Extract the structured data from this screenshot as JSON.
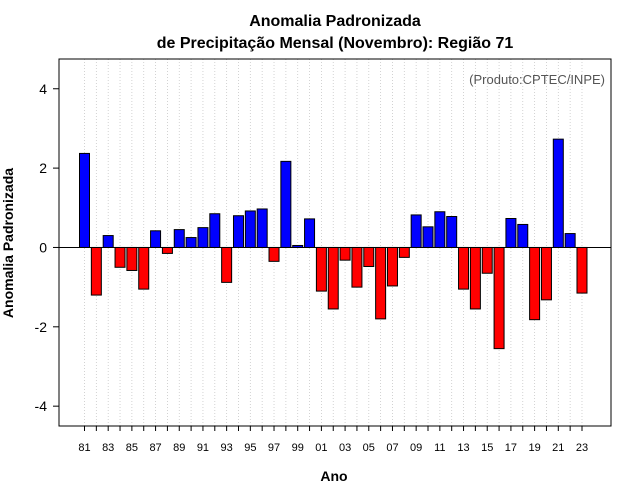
{
  "chart_data": {
    "type": "bar",
    "title_line1": "Anomalia Padronizada",
    "title_line2": "de Precipitação Mensal (Novembro): Região 71",
    "xlabel": "Ano",
    "ylabel": "Anomalia Padronizada",
    "annotation": "(Produto:CPTEC/INPE)",
    "ylim": [
      -4.5,
      4.75
    ],
    "yticks": [
      -4,
      -2,
      0,
      2,
      4
    ],
    "grid": "vertical dotted",
    "categories": [
      "81",
      "82",
      "83",
      "84",
      "85",
      "86",
      "87",
      "88",
      "89",
      "90",
      "91",
      "92",
      "93",
      "94",
      "95",
      "96",
      "97",
      "98",
      "99",
      "00",
      "01",
      "02",
      "03",
      "04",
      "05",
      "06",
      "07",
      "08",
      "09",
      "10",
      "11",
      "12",
      "13",
      "14",
      "15",
      "16",
      "17",
      "18",
      "19",
      "20",
      "21",
      "22",
      "23"
    ],
    "xtick_labels": [
      "81",
      "83",
      "85",
      "87",
      "89",
      "91",
      "93",
      "95",
      "97",
      "99",
      "01",
      "03",
      "05",
      "07",
      "09",
      "11",
      "13",
      "15",
      "17",
      "19",
      "21",
      "23"
    ],
    "values": [
      2.37,
      -1.2,
      0.3,
      -0.5,
      -0.58,
      -1.05,
      0.42,
      -0.15,
      0.45,
      0.25,
      0.5,
      0.85,
      -0.88,
      0.8,
      0.92,
      0.97,
      -0.35,
      2.17,
      0.05,
      0.72,
      -1.1,
      -1.55,
      -0.32,
      -1.0,
      -0.48,
      -1.8,
      -0.97,
      -0.25,
      0.82,
      0.52,
      0.9,
      0.78,
      -1.05,
      -1.55,
      -0.65,
      -2.55,
      0.73,
      0.58,
      -1.82,
      -1.32,
      2.73,
      0.35,
      -1.15
    ],
    "colors": {
      "positive": "#0000ff",
      "negative": "#ff0000"
    }
  }
}
